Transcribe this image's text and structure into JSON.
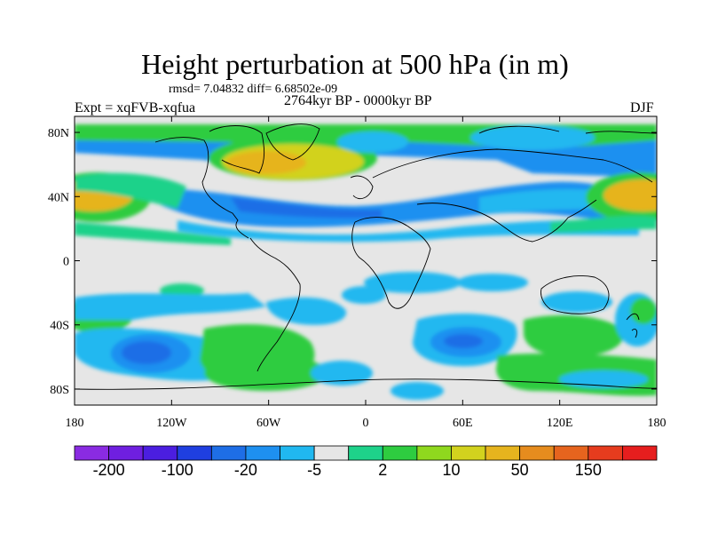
{
  "title": "Height perturbation at 500 hPa (in m)",
  "stats": "rmsd= 7.04832 diff= 6.68502e-09",
  "period": "2764kyr BP - 0000kyr BP",
  "experiment": "Expt = xqFVB-xqfua",
  "season": "DJF",
  "map": {
    "projection": "cylindrical equidistant",
    "lon_range": [
      -180,
      180
    ],
    "lat_range": [
      -90,
      90
    ],
    "lat_ticks": [
      "80N",
      "40N",
      "0",
      "40S",
      "80S"
    ],
    "lon_ticks": [
      "180",
      "120W",
      "60W",
      "0",
      "60E",
      "120E",
      "180"
    ],
    "background_color": "#e6e6e6"
  },
  "colorbar": {
    "labels": [
      "-200",
      "-100",
      "-20",
      "-5",
      "2",
      "10",
      "50",
      "150"
    ],
    "colors": [
      "#8a2be2",
      "#6f1fe0",
      "#4b1ee0",
      "#1f3fe0",
      "#1e6ee6",
      "#1e90f0",
      "#20b8f0",
      "#e6e6e6",
      "#1ed28a",
      "#2ecc40",
      "#8fd81e",
      "#d2d21e",
      "#e6b41e",
      "#e68c1e",
      "#e6641e",
      "#e63c1e",
      "#e61e1e"
    ]
  }
}
